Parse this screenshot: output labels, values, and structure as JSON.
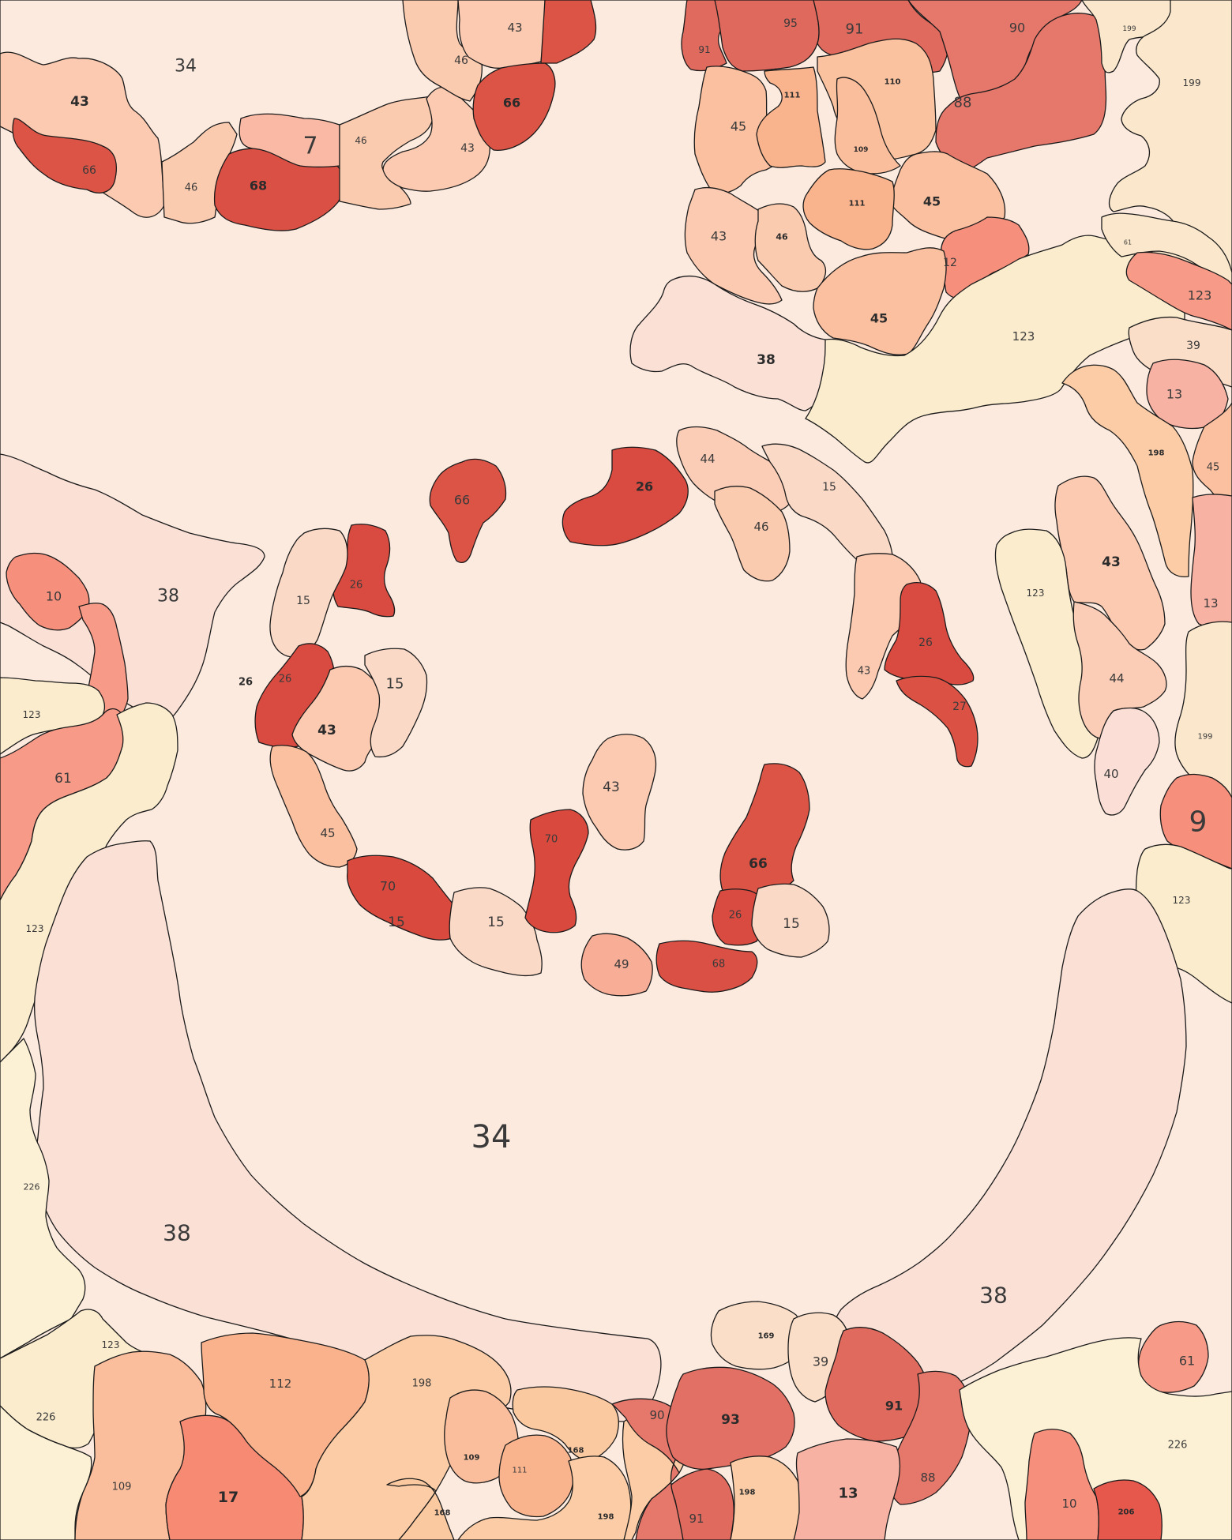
{
  "map": {
    "kind": "paint-by-number region map",
    "palette": {
      "7": "#f9b9a4",
      "9": "#f68f7c",
      "10": "#f68f7c",
      "12": "#f68f7c",
      "13": "#f7b2a3",
      "15": "#fbd9c7",
      "17": "#f68a73",
      "26": "#d94b40",
      "27": "#db5245",
      "34": "#fdeadf",
      "38": "#fbe0d6",
      "39": "#fbdec8",
      "40": "#fbdfd6",
      "43": "#fbcab1",
      "44": "#fbcdb6",
      "45": "#fbc0a0",
      "46": "#fbcbb0",
      "49": "#f7ad96",
      "61": "#f79b88",
      "66": "#dc5446",
      "68": "#db5045",
      "70": "#d9493d",
      "88": "#e6776b",
      "90": "#e5776b",
      "91": "#e06a5e",
      "93": "#e27065",
      "95": "#e0695d",
      "109": "#fbbe9c",
      "110": "#fbc29f",
      "111": "#f9b48d",
      "112": "#f9b28b",
      "123": "#fbeccd",
      "168": "#fbc9a0",
      "169": "#fbdec8",
      "198": "#fbcca5",
      "199": "#fbe8cc",
      "206": "#e6574c",
      "226": "#fcf1d5"
    },
    "labels": {
      "l1": "34",
      "l2": "43",
      "l3": "66",
      "l4": "46",
      "l5": "68",
      "l6": "7",
      "l7": "46",
      "l8": "43",
      "l9": "43",
      "l10": "46",
      "l11": "66",
      "l12": "91",
      "l13": "95",
      "l14": "91",
      "l15": "90",
      "l16": "88",
      "l17": "111",
      "l18": "110",
      "l19": "109",
      "l20": "45",
      "l21": "111",
      "l22": "45",
      "l23": "43",
      "l24": "46",
      "l25": "12",
      "l26": "45",
      "l27": "38",
      "l28": "123",
      "l29": "199",
      "l30": "199",
      "l31": "61",
      "l32": "123",
      "l33": "39",
      "l34": "13",
      "l35": "198",
      "l36": "45",
      "l37": "13",
      "l38": "43",
      "l39": "123",
      "l40": "44",
      "l41": "40",
      "l42": "199",
      "l43": "9",
      "l44": "123",
      "l45": "66",
      "l46": "26",
      "l47": "44",
      "l48": "15",
      "l49": "46",
      "l50": "26",
      "l51": "15",
      "l52": "26",
      "l53": "43",
      "l54": "27",
      "l55": "38",
      "l56": "10",
      "l57": "15",
      "l58": "26",
      "l59": "26",
      "l60": "15",
      "l61": "43",
      "l62": "45",
      "l63": "70",
      "l64": "15",
      "l65": "70",
      "l66": "43",
      "l67": "66",
      "l68": "26",
      "l69": "15",
      "l70": "49",
      "l71": "68",
      "l72": "123",
      "l73": "61",
      "l74": "123",
      "l75": "34",
      "l76": "38",
      "l77": "38",
      "l78": "226",
      "l79": "123",
      "l80": "226",
      "l81": "109",
      "l82": "17",
      "l83": "112",
      "l84": "198",
      "l85": "109",
      "l86": "111",
      "l87": "168",
      "l88": "168",
      "l89": "198",
      "l90": "90",
      "l91": "91",
      "l92": "93",
      "l93": "198",
      "l94": "169",
      "l95": "39",
      "l96": "91",
      "l97": "13",
      "l98": "88",
      "l99": "61",
      "l100": "226",
      "l101": "10",
      "l102": "206",
      "l103": "123"
    }
  }
}
